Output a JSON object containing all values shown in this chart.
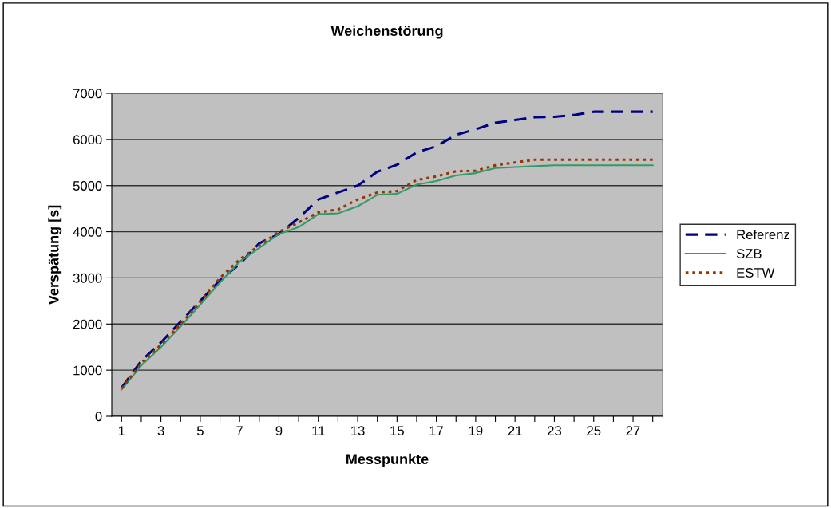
{
  "chart_data": {
    "type": "line",
    "title": "Weichenstörung",
    "xlabel": "Messpunkte",
    "ylabel": "Verspätung [s]",
    "categories": [
      "1",
      null,
      "3",
      null,
      "5",
      null,
      "7",
      null,
      "9",
      null,
      "11",
      null,
      "13",
      null,
      "15",
      null,
      "17",
      null,
      "19",
      null,
      "21",
      null,
      "23",
      null,
      "25",
      null,
      "27",
      null
    ],
    "series": [
      {
        "name": "Referenz",
        "color": "#000080",
        "line_style": "dashed",
        "values": [
          620,
          1200,
          1600,
          2050,
          2500,
          2950,
          3300,
          3750,
          3950,
          4300,
          4700,
          4850,
          5000,
          5300,
          5450,
          5720,
          5850,
          6100,
          6220,
          6360,
          6420,
          6480,
          6490,
          6530,
          6600,
          6600,
          6600,
          6600
        ]
      },
      {
        "name": "SZB",
        "color": "#339966",
        "line_style": "solid",
        "values": [
          580,
          1100,
          1500,
          1950,
          2420,
          2900,
          3350,
          3650,
          3950,
          4100,
          4380,
          4400,
          4550,
          4800,
          4820,
          5020,
          5100,
          5220,
          5270,
          5380,
          5400,
          5420,
          5440,
          5440,
          5440,
          5440,
          5440,
          5440
        ]
      },
      {
        "name": "ESTW",
        "color": "#993300",
        "line_style": "dotted",
        "values": [
          600,
          1150,
          1550,
          2000,
          2480,
          3000,
          3400,
          3700,
          4000,
          4200,
          4420,
          4480,
          4700,
          4850,
          4880,
          5120,
          5200,
          5310,
          5320,
          5440,
          5500,
          5560,
          5560,
          5560,
          5560,
          5560,
          5560,
          5560
        ]
      }
    ],
    "ylim": [
      0,
      7000
    ],
    "yticks": [
      0,
      1000,
      2000,
      3000,
      4000,
      5000,
      6000,
      7000
    ],
    "grid": "y",
    "legend": "right"
  }
}
